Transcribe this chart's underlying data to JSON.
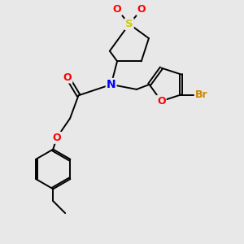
{
  "bg_color": "#e8e8e8",
  "bond_color": "#000000",
  "bond_width": 1.4,
  "atom_colors": {
    "N": "#0000ff",
    "O_carbonyl": "#ff0000",
    "O_ether": "#ff0000",
    "O_furan": "#ff0000",
    "S": "#cccc00",
    "O_sulfonyl": "#ff0000",
    "Br": "#cc8800",
    "C": "#000000"
  },
  "figsize": [
    3.0,
    3.0
  ],
  "dpi": 100,
  "xlim": [
    0,
    10
  ],
  "ylim": [
    0,
    10
  ]
}
